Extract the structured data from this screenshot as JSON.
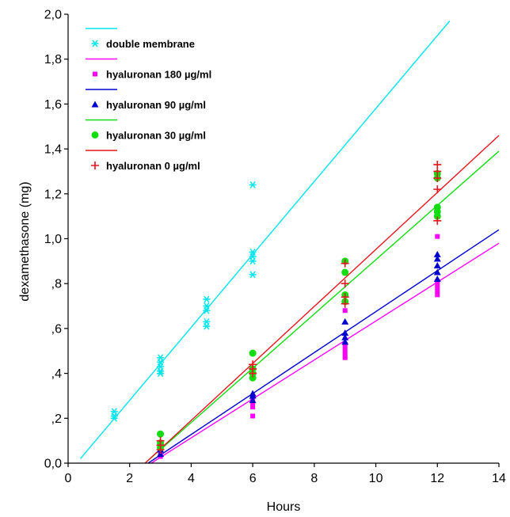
{
  "chart_data": {
    "type": "scatter",
    "title": "",
    "xlabel": "Hours",
    "ylabel": "dexamethasone (mg)",
    "xlim": [
      0,
      14
    ],
    "ylim": [
      0,
      2.0
    ],
    "xticks": [
      0,
      2,
      4,
      6,
      8,
      10,
      12,
      14
    ],
    "xtick_labels": [
      "0",
      "2",
      "4",
      "6",
      "8",
      "10",
      "12",
      "14"
    ],
    "yticks": [
      0,
      0.2,
      0.4,
      0.6,
      0.8,
      1.0,
      1.2,
      1.4,
      1.6,
      1.8,
      2.0
    ],
    "ytick_labels": [
      "0,0",
      ",2",
      ",4",
      ",6",
      ",8",
      "1,0",
      "1,2",
      "1,4",
      "1,6",
      "1,8",
      "2,0"
    ],
    "grid": false,
    "legend_position": "top-left",
    "series": [
      {
        "name": "double membrane",
        "color": "#00e5ee",
        "marker": "asterisk",
        "fit": [
          [
            0.4,
            0.02
          ],
          [
            12.4,
            1.97
          ]
        ],
        "points": [
          [
            1.5,
            0.23
          ],
          [
            1.5,
            0.21
          ],
          [
            1.5,
            0.2
          ],
          [
            3,
            0.47
          ],
          [
            3,
            0.45
          ],
          [
            3,
            0.43
          ],
          [
            3,
            0.41
          ],
          [
            3,
            0.4
          ],
          [
            4.5,
            0.73
          ],
          [
            4.5,
            0.7
          ],
          [
            4.5,
            0.68
          ],
          [
            4.5,
            0.63
          ],
          [
            4.5,
            0.61
          ],
          [
            6,
            1.24
          ],
          [
            6,
            0.94
          ],
          [
            6,
            0.92
          ],
          [
            6,
            0.9
          ],
          [
            6,
            0.84
          ]
        ]
      },
      {
        "name": "hyaluronan 180 µg/ml",
        "color": "#ff00ff",
        "marker": "square",
        "fit": [
          [
            2.7,
            0.0
          ],
          [
            14,
            0.98
          ]
        ],
        "points": [
          [
            3,
            0.03
          ],
          [
            3,
            0.05
          ],
          [
            3,
            0.07
          ],
          [
            6,
            0.21
          ],
          [
            6,
            0.25
          ],
          [
            6,
            0.27
          ],
          [
            6,
            0.29
          ],
          [
            9,
            0.47
          ],
          [
            9,
            0.49
          ],
          [
            9,
            0.51
          ],
          [
            9,
            0.53
          ],
          [
            9,
            0.68
          ],
          [
            12,
            0.75
          ],
          [
            12,
            0.77
          ],
          [
            12,
            0.79
          ],
          [
            12,
            0.81
          ],
          [
            12,
            1.01
          ]
        ]
      },
      {
        "name": "hyaluronan 90 µg/ml",
        "color": "#0000cd",
        "marker": "triangle",
        "fit": [
          [
            2.6,
            0.0
          ],
          [
            14,
            1.04
          ]
        ],
        "points": [
          [
            3,
            0.04
          ],
          [
            3,
            0.06
          ],
          [
            3,
            0.08
          ],
          [
            6,
            0.28
          ],
          [
            6,
            0.3
          ],
          [
            6,
            0.31
          ],
          [
            9,
            0.54
          ],
          [
            9,
            0.56
          ],
          [
            9,
            0.58
          ],
          [
            9,
            0.63
          ],
          [
            12,
            0.82
          ],
          [
            12,
            0.85
          ],
          [
            12,
            0.88
          ],
          [
            12,
            0.91
          ],
          [
            12,
            0.93
          ]
        ]
      },
      {
        "name": "hyaluronan 30 µg/ml",
        "color": "#11dd11",
        "marker": "circle",
        "fit": [
          [
            2.5,
            0.0
          ],
          [
            14,
            1.39
          ]
        ],
        "points": [
          [
            3,
            0.13
          ],
          [
            3,
            0.09
          ],
          [
            3,
            0.07
          ],
          [
            6,
            0.49
          ],
          [
            6,
            0.42
          ],
          [
            6,
            0.4
          ],
          [
            6,
            0.38
          ],
          [
            9,
            0.9
          ],
          [
            9,
            0.85
          ],
          [
            9,
            0.75
          ],
          [
            9,
            0.72
          ],
          [
            12,
            1.29
          ],
          [
            12,
            1.27
          ],
          [
            12,
            1.14
          ],
          [
            12,
            1.12
          ],
          [
            12,
            1.1
          ]
        ]
      },
      {
        "name": "hyaluronan 0 µg/ml",
        "color": "#e8141e",
        "marker": "plus",
        "fit": [
          [
            2.5,
            0.0
          ],
          [
            14,
            1.46
          ]
        ],
        "points": [
          [
            3,
            0.1
          ],
          [
            3,
            0.08
          ],
          [
            3,
            0.06
          ],
          [
            6,
            0.44
          ],
          [
            6,
            0.42
          ],
          [
            6,
            0.4
          ],
          [
            9,
            0.89
          ],
          [
            9,
            0.8
          ],
          [
            9,
            0.74
          ],
          [
            9,
            0.71
          ],
          [
            12,
            1.33
          ],
          [
            12,
            1.3
          ],
          [
            12,
            1.27
          ],
          [
            12,
            1.22
          ],
          [
            12,
            1.08
          ]
        ]
      }
    ]
  }
}
